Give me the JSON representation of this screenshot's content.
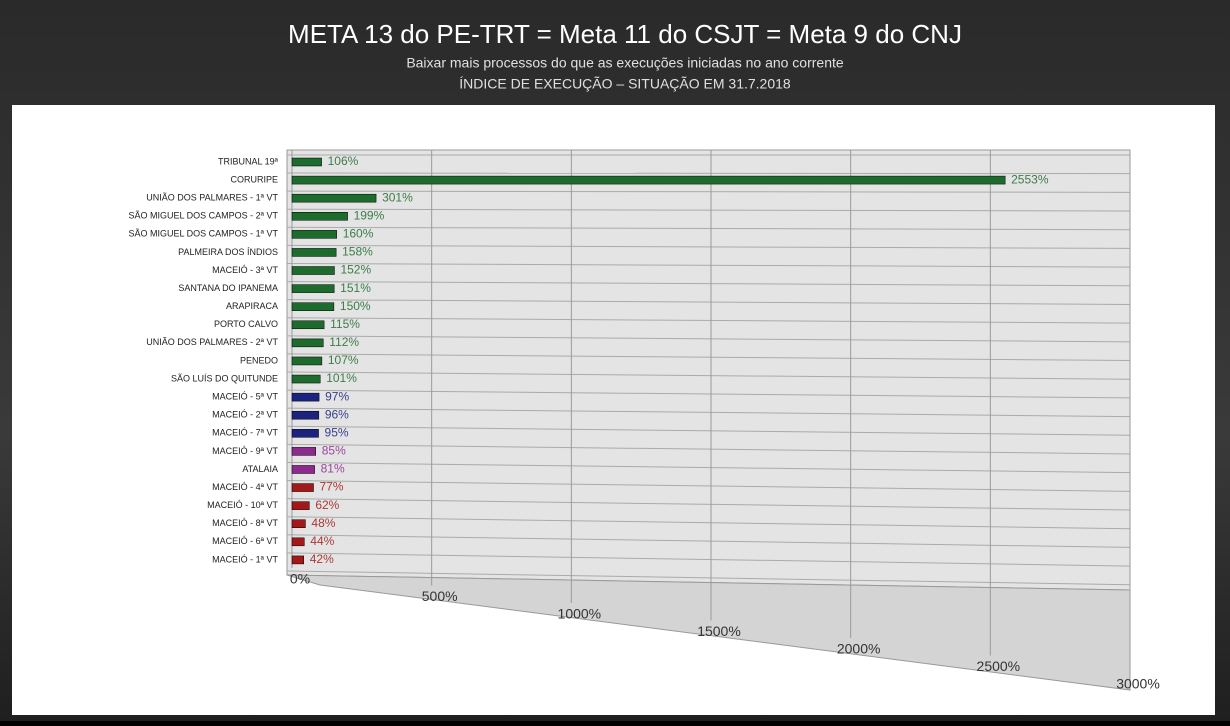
{
  "chart_data": {
    "type": "bar",
    "title": "META 13 do PE-TRT = Meta 11 do CSJT = Meta 9 do CNJ",
    "subtitle": [
      "Baixar mais processos do que as execuções iniciadas no ano corrente",
      "ÍNDICE DE EXECUÇÃO – SITUAÇÃO EM 31.7.2018"
    ],
    "categories": [
      "TRIBUNAL 19ª",
      "CORURIPE",
      "UNIÃO DOS PALMARES - 1ª VT",
      "SÃO MIGUEL DOS CAMPOS - 2ª VT",
      "SÃO MIGUEL DOS CAMPOS - 1ª VT",
      "PALMEIRA DOS ÍNDIOS",
      "MACEIÓ - 3ª VT",
      "SANTANA DO IPANEMA",
      "ARAPIRACA",
      "PORTO CALVO",
      "UNIÃO DOS PALMARES - 2ª VT",
      "PENEDO",
      "SÃO LUÍS DO QUITUNDE",
      "MACEIÓ - 5ª VT",
      "MACEIÓ - 2ª VT",
      "MACEIÓ - 7ª VT",
      "MACEIÓ - 9ª VT",
      "ATALAIA",
      "MACEIÓ - 4ª VT",
      "MACEIÓ - 10ª VT",
      "MACEIÓ - 8ª VT",
      "MACEIÓ - 6ª VT",
      "MACEIÓ - 1ª VT"
    ],
    "values": [
      106,
      2553,
      301,
      199,
      160,
      158,
      152,
      151,
      150,
      115,
      112,
      107,
      101,
      97,
      96,
      95,
      85,
      81,
      77,
      62,
      48,
      44,
      42
    ],
    "value_labels": [
      "106%",
      "2553%",
      "301%",
      "199%",
      "160%",
      "158%",
      "152%",
      "151%",
      "150%",
      "115%",
      "112%",
      "107%",
      "101%",
      "97%",
      "96%",
      "95%",
      "85%",
      "81%",
      "77%",
      "62%",
      "48%",
      "44%",
      "42%"
    ],
    "colors": [
      "#1e6b2e",
      "#1e6b2e",
      "#1e6b2e",
      "#1e6b2e",
      "#1e6b2e",
      "#1e6b2e",
      "#1e6b2e",
      "#1e6b2e",
      "#1e6b2e",
      "#1e6b2e",
      "#1e6b2e",
      "#1e6b2e",
      "#1e6b2e",
      "#1a237e",
      "#1a237e",
      "#1a237e",
      "#8e2a8e",
      "#8e2a8e",
      "#a31818",
      "#a31818",
      "#a31818",
      "#a31818",
      "#a31818"
    ],
    "xlim": [
      0,
      3000
    ],
    "xticks": [
      {
        "value": 0,
        "label": "0%"
      },
      {
        "value": 500,
        "label": "500%"
      },
      {
        "value": 1000,
        "label": "1000%"
      },
      {
        "value": 1500,
        "label": "1500%"
      },
      {
        "value": 2000,
        "label": "2000%"
      },
      {
        "value": 2500,
        "label": "2500%"
      },
      {
        "value": 3000,
        "label": "3000%"
      }
    ],
    "grid": true
  }
}
